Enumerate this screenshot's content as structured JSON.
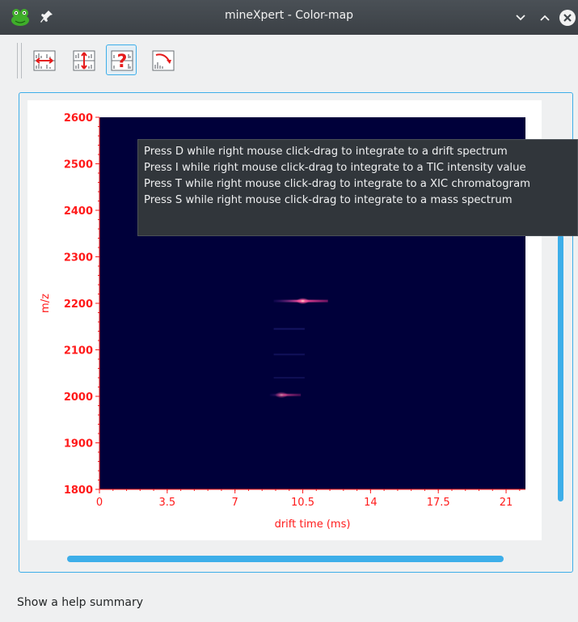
{
  "window": {
    "title": "mineXpert - Color-map",
    "app_icon": "frog-app-icon",
    "controls": [
      "pin-icon",
      "minimize-icon",
      "maximize-icon",
      "close-icon"
    ]
  },
  "toolbar": {
    "buttons": [
      {
        "name": "fit-horizontal-button",
        "icon": "horizontal-zoom-icon"
      },
      {
        "name": "fit-vertical-button",
        "icon": "vertical-zoom-icon"
      },
      {
        "name": "help-summary-button",
        "icon": "help-question-icon",
        "active": true
      },
      {
        "name": "reset-view-button",
        "icon": "reset-curve-icon"
      }
    ]
  },
  "tooltip": {
    "lines": [
      "Press D while right mouse click-drag to integrate to a drift spectrum",
      "Press I while right mouse click-drag to integrate to a TIC intensity value",
      "Press T while right mouse click-drag to integrate to a XIC chromatogram",
      "Press S while right mouse click-drag to integrate to a mass spectrum"
    ]
  },
  "colors": {
    "accent": "#3daee9",
    "axis": "#ff1a1a",
    "plot_background": "#00003a",
    "titlebar": "#41464b",
    "window_background": "#eff0f1"
  },
  "chart_data": {
    "type": "heatmap",
    "xlabel": "drift time (ms)",
    "ylabel": "m/z",
    "xlim": [
      0,
      22
    ],
    "ylim": [
      1800,
      2600
    ],
    "x_ticks": [
      "0",
      "3.5",
      "7",
      "10.5",
      "14",
      "17.5",
      "21"
    ],
    "y_ticks": [
      "1800",
      "1900",
      "2000",
      "2100",
      "2200",
      "2300",
      "2400",
      "2500",
      "2600"
    ],
    "features": [
      {
        "mz": 2205,
        "drift_start": 9.0,
        "drift_end": 11.8,
        "drift_peak": 10.5,
        "intensity": 1.0
      },
      {
        "mz": 2003,
        "drift_start": 8.8,
        "drift_end": 10.4,
        "drift_peak": 9.4,
        "intensity": 0.6
      },
      {
        "mz": 2145,
        "drift_start": 9.0,
        "drift_end": 10.6,
        "drift_peak": 9.8,
        "intensity": 0.12
      },
      {
        "mz": 2090,
        "drift_start": 9.0,
        "drift_end": 10.6,
        "drift_peak": 9.8,
        "intensity": 0.1
      },
      {
        "mz": 2040,
        "drift_start": 9.0,
        "drift_end": 10.6,
        "drift_peak": 9.8,
        "intensity": 0.08
      }
    ]
  },
  "statusbar": {
    "text": "Show a help summary"
  }
}
